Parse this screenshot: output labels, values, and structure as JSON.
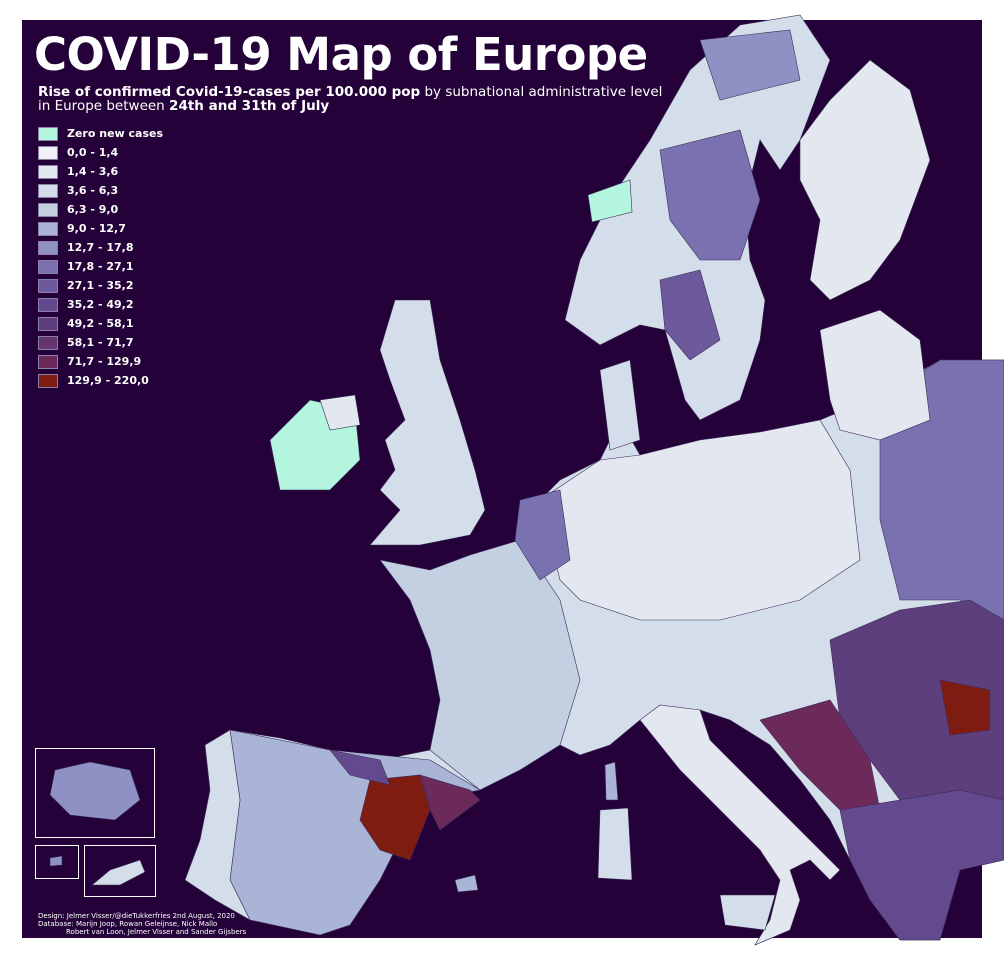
{
  "title": "COVID-19 Map of Europe",
  "subtitle": {
    "bold1": "Rise of confirmed Covid-19-cases per 100.000 pop",
    "text1": " by subnational administrative level",
    "text2": "in Europe between ",
    "bold2": "24th and 31th of July"
  },
  "legend": [
    {
      "label": "Zero new cases",
      "color": "#b3f5de"
    },
    {
      "label": "0,0 - 1,4",
      "color": "#eef1f6"
    },
    {
      "label": "1,4 - 3,6",
      "color": "#e3e8f0"
    },
    {
      "label": "3,6 - 6,3",
      "color": "#d4deea"
    },
    {
      "label": "6,3 - 9,0",
      "color": "#c2d0e2"
    },
    {
      "label": "9,0 - 12,7",
      "color": "#a9b4d6"
    },
    {
      "label": "12,7 - 17,8",
      "color": "#8f91c4"
    },
    {
      "label": "17,8 - 27,1",
      "color": "#7a72b0"
    },
    {
      "label": "27,1 - 35,2",
      "color": "#6c5a9d"
    },
    {
      "label": "35,2 - 49,2",
      "color": "#634a8e"
    },
    {
      "label": "49,2 - 58,1",
      "color": "#5e3f7e"
    },
    {
      "label": "58,1 - 71,7",
      "color": "#65356f"
    },
    {
      "label": "71,7 - 129,9",
      "color": "#6b2a5a"
    },
    {
      "label": "129,9 - 220,0",
      "color": "#7e1c12"
    }
  ],
  "credits": [
    "Design: Jelmer Visser/@dieTukkerfries 2nd August, 2020",
    "Database: Marijn Joop, Rowan Geleijnse, Nick Mallo",
    "Robert van Loon, Jelmer Visser and Sander Gijsbers"
  ],
  "colors": {
    "background": "#240239",
    "border": "#3a2a55"
  }
}
